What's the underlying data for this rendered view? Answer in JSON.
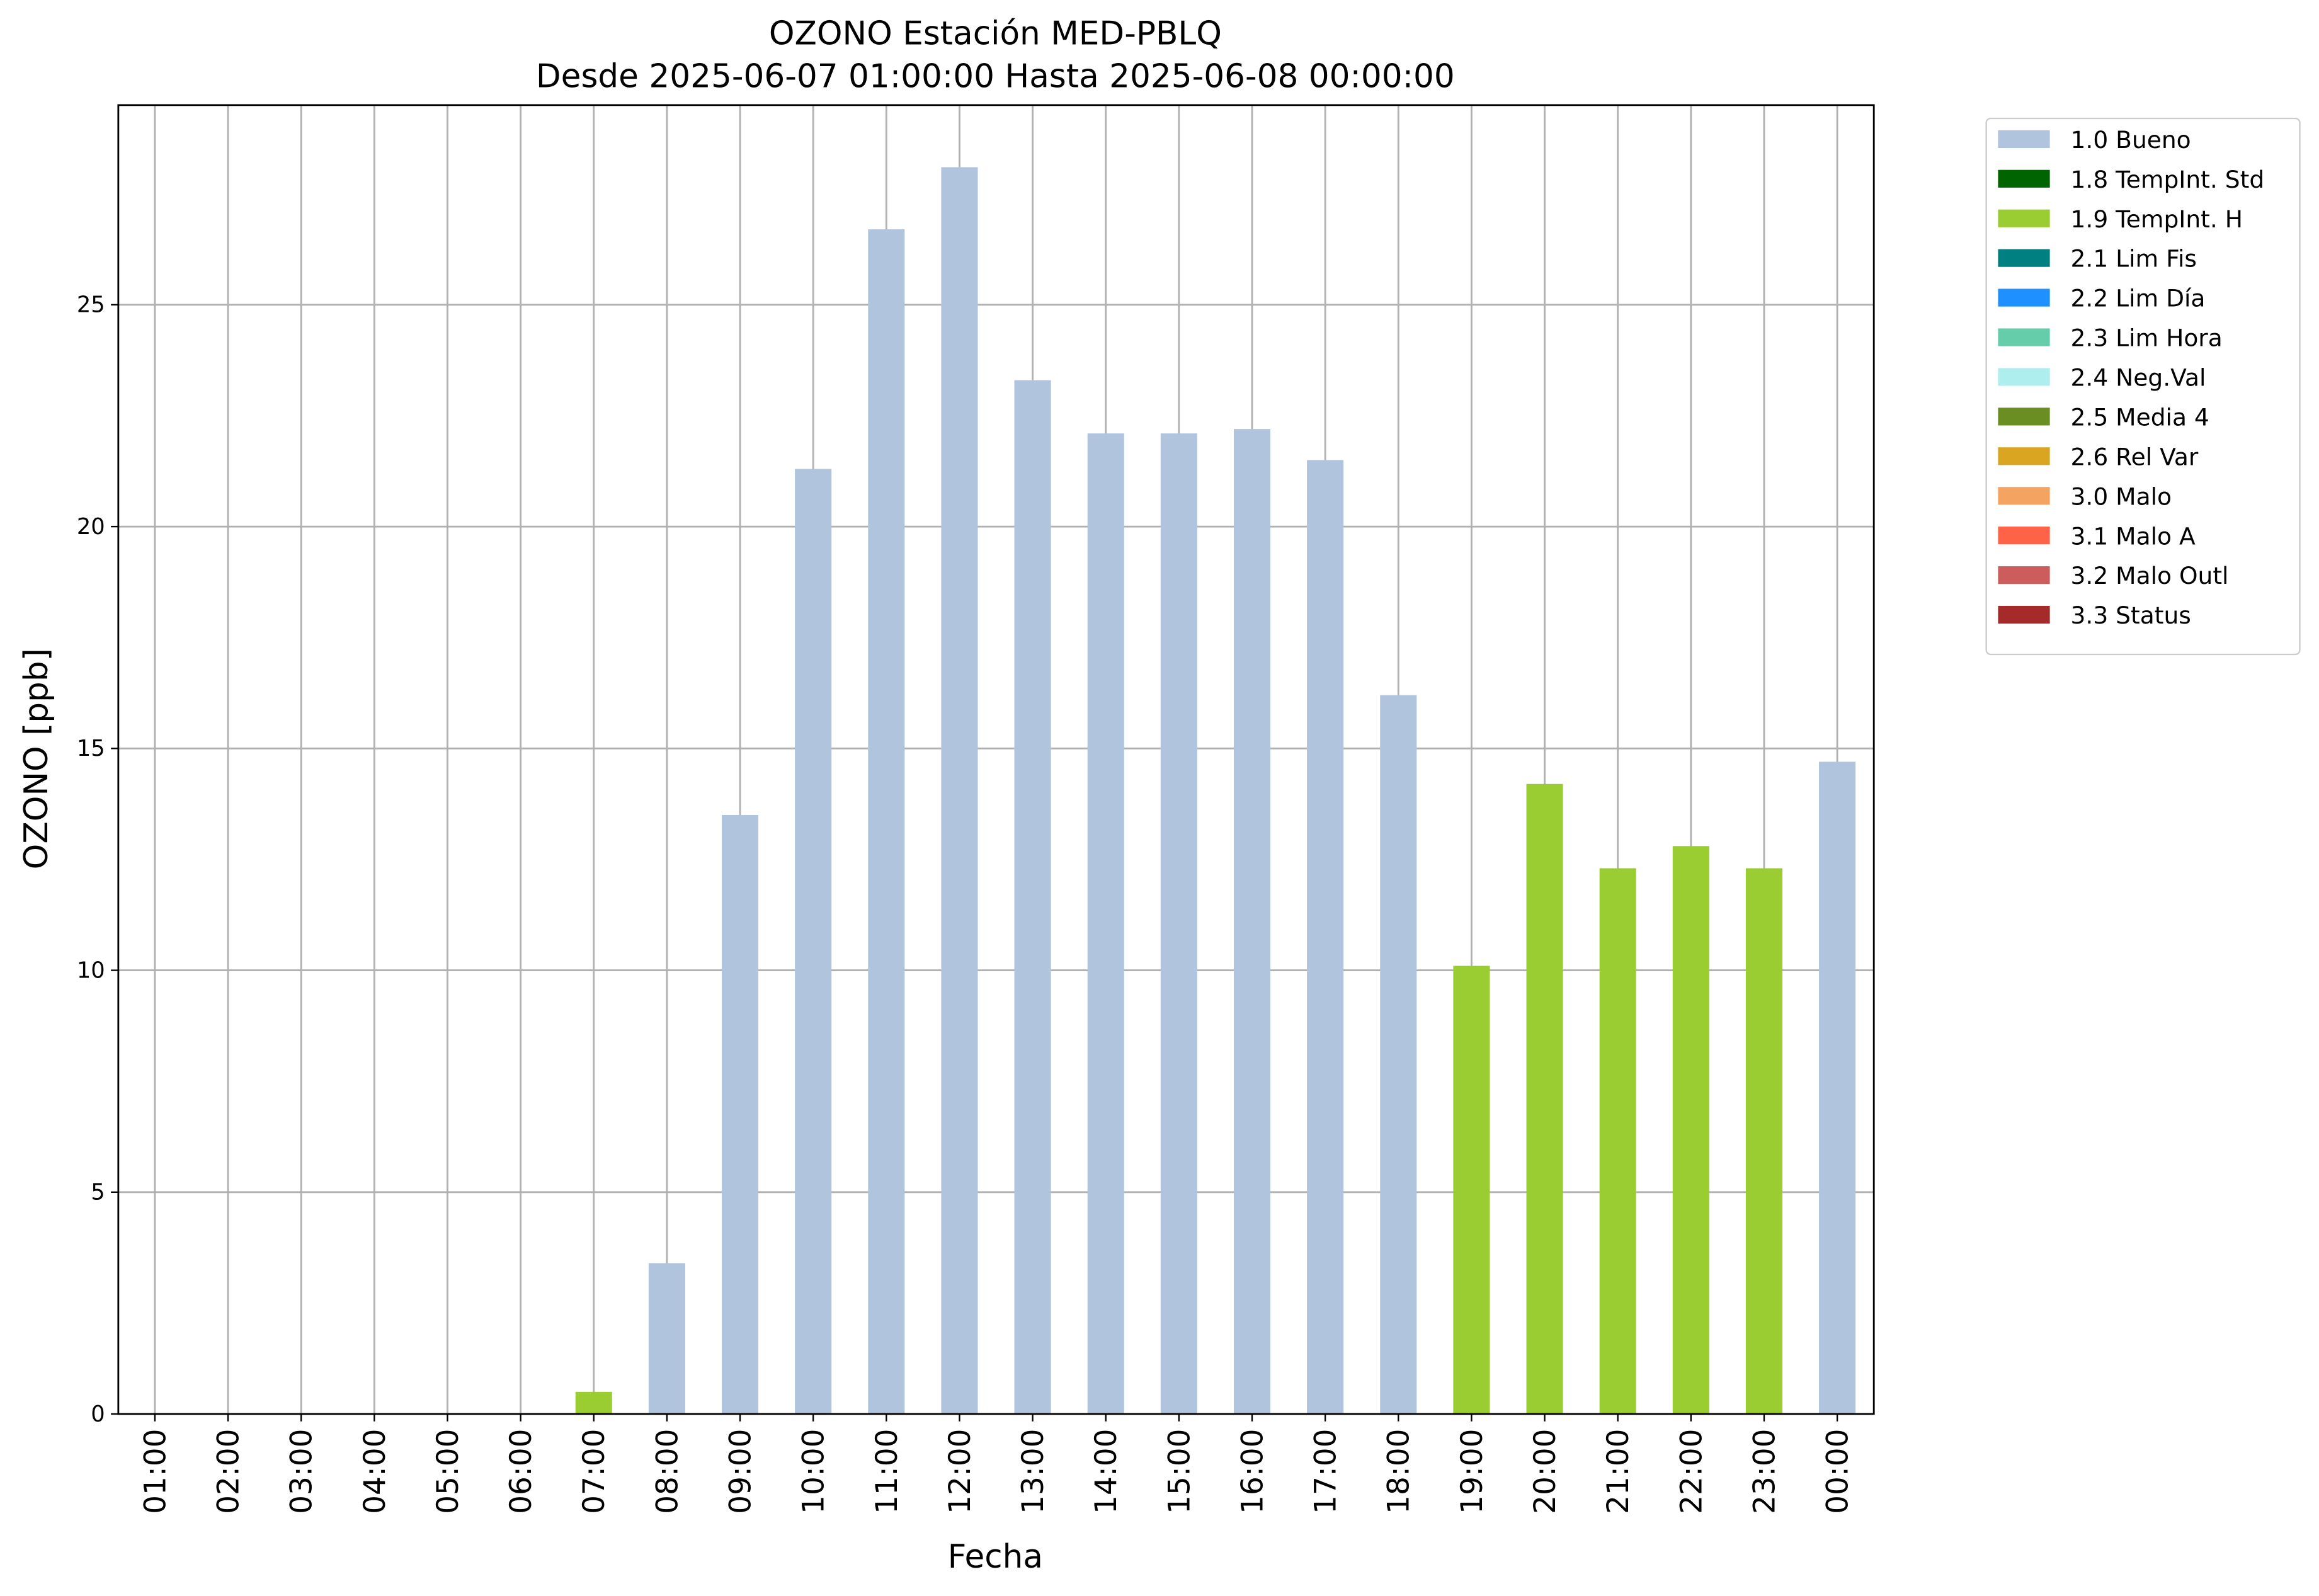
{
  "chart_data": {
    "type": "bar",
    "stacked": true,
    "title": "OZONO Estación MED-PBLQ",
    "subtitle": "Desde 2025-06-07 01:00:00 Hasta 2025-06-08 00:00:00",
    "x_label": "Fecha",
    "y_label": "OZONO [ppb]",
    "categories": [
      "01:00",
      "02:00",
      "03:00",
      "04:00",
      "05:00",
      "06:00",
      "07:00",
      "08:00",
      "09:00",
      "10:00",
      "11:00",
      "12:00",
      "13:00",
      "14:00",
      "15:00",
      "16:00",
      "17:00",
      "18:00",
      "19:00",
      "20:00",
      "21:00",
      "22:00",
      "23:00",
      "00:00"
    ],
    "series": [
      {
        "name": "1.0 Bueno",
        "color": "#b0c4de",
        "values": [
          null,
          null,
          null,
          null,
          null,
          null,
          null,
          3.4,
          13.5,
          21.3,
          26.7,
          28.1,
          23.3,
          22.1,
          22.1,
          22.2,
          21.5,
          16.2,
          null,
          null,
          null,
          null,
          null,
          14.7
        ]
      },
      {
        "name": "1.8 TempInt. Std",
        "color": "#006400",
        "values": [
          null,
          null,
          null,
          null,
          null,
          null,
          null,
          null,
          null,
          null,
          null,
          null,
          null,
          null,
          null,
          null,
          null,
          null,
          null,
          null,
          null,
          null,
          null,
          null
        ]
      },
      {
        "name": "1.9 TempInt. H",
        "color": "#9acd32",
        "values": [
          null,
          null,
          null,
          null,
          null,
          null,
          0.5,
          null,
          null,
          null,
          null,
          null,
          null,
          null,
          null,
          null,
          null,
          null,
          10.1,
          14.2,
          12.3,
          12.8,
          12.3,
          null
        ]
      },
      {
        "name": "2.1 Lim Fis",
        "color": "#008080",
        "values": [
          null,
          null,
          null,
          null,
          null,
          null,
          null,
          null,
          null,
          null,
          null,
          null,
          null,
          null,
          null,
          null,
          null,
          null,
          null,
          null,
          null,
          null,
          null,
          null
        ]
      },
      {
        "name": "2.2 Lim Día",
        "color": "#1e90ff",
        "values": [
          null,
          null,
          null,
          null,
          null,
          null,
          null,
          null,
          null,
          null,
          null,
          null,
          null,
          null,
          null,
          null,
          null,
          null,
          null,
          null,
          null,
          null,
          null,
          null
        ]
      },
      {
        "name": "2.3 Lim Hora",
        "color": "#66cdaa",
        "values": [
          null,
          null,
          null,
          null,
          null,
          null,
          null,
          null,
          null,
          null,
          null,
          null,
          null,
          null,
          null,
          null,
          null,
          null,
          null,
          null,
          null,
          null,
          null,
          null
        ]
      },
      {
        "name": "2.4 Neg.Val",
        "color": "#afeeee",
        "values": [
          null,
          null,
          null,
          null,
          null,
          null,
          null,
          null,
          null,
          null,
          null,
          null,
          null,
          null,
          null,
          null,
          null,
          null,
          null,
          null,
          null,
          null,
          null,
          null
        ]
      },
      {
        "name": "2.5 Media 4",
        "color": "#6b8e23",
        "values": [
          null,
          null,
          null,
          null,
          null,
          null,
          null,
          null,
          null,
          null,
          null,
          null,
          null,
          null,
          null,
          null,
          null,
          null,
          null,
          null,
          null,
          null,
          null,
          null
        ]
      },
      {
        "name": "2.6 Rel Var",
        "color": "#daa520",
        "values": [
          null,
          null,
          null,
          null,
          null,
          null,
          null,
          null,
          null,
          null,
          null,
          null,
          null,
          null,
          null,
          null,
          null,
          null,
          null,
          null,
          null,
          null,
          null,
          null
        ]
      },
      {
        "name": "3.0 Malo",
        "color": "#f4a460",
        "values": [
          null,
          null,
          null,
          null,
          null,
          null,
          null,
          null,
          null,
          null,
          null,
          null,
          null,
          null,
          null,
          null,
          null,
          null,
          null,
          null,
          null,
          null,
          null,
          null
        ]
      },
      {
        "name": "3.1 Malo A",
        "color": "#ff6347",
        "values": [
          null,
          null,
          null,
          null,
          null,
          null,
          null,
          null,
          null,
          null,
          null,
          null,
          null,
          null,
          null,
          null,
          null,
          null,
          null,
          null,
          null,
          null,
          null,
          null
        ]
      },
      {
        "name": "3.2 Malo Outl",
        "color": "#cd5c5c",
        "values": [
          null,
          null,
          null,
          null,
          null,
          null,
          null,
          null,
          null,
          null,
          null,
          null,
          null,
          null,
          null,
          null,
          null,
          null,
          null,
          null,
          null,
          null,
          null,
          null
        ]
      },
      {
        "name": "3.3 Status",
        "color": "#a52a2a",
        "values": [
          null,
          null,
          null,
          null,
          null,
          null,
          null,
          null,
          null,
          null,
          null,
          null,
          null,
          null,
          null,
          null,
          null,
          null,
          null,
          null,
          null,
          null,
          null,
          null
        ]
      }
    ],
    "ylim": [
      0,
      29.5
    ],
    "yticks": [
      0,
      5,
      10,
      15,
      20,
      25
    ],
    "grid": true,
    "legend": "outside-right"
  }
}
